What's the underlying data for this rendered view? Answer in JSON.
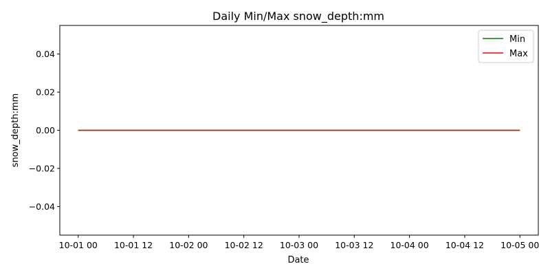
{
  "chart_data": {
    "type": "line",
    "title": "Daily Min/Max snow_depth:mm",
    "xlabel": "Date",
    "ylabel": "snow_depth:mm",
    "x": [
      "2023-10-01 00:00",
      "2023-10-02 00:00",
      "2023-10-03 00:00",
      "2023-10-04 00:00",
      "2023-10-05 00:00"
    ],
    "xlim": [
      "2023-09-30 20:00",
      "2023-10-05 04:00"
    ],
    "x_ticks": [
      "10-01 00",
      "10-01 12",
      "10-02 00",
      "10-02 12",
      "10-03 00",
      "10-03 12",
      "10-04 00",
      "10-04 12",
      "10-05 00"
    ],
    "ylim": [
      -0.055,
      0.055
    ],
    "y_ticks": [
      "−0.04",
      "−0.02",
      "0.00",
      "0.02",
      "0.04"
    ],
    "series": [
      {
        "name": "Min",
        "color": "#008000",
        "values": [
          0,
          0,
          0,
          0,
          0
        ]
      },
      {
        "name": "Max",
        "color": "#ff0000",
        "values": [
          0,
          0,
          0,
          0,
          0
        ]
      }
    ],
    "grid": false,
    "legend": "top-right"
  }
}
